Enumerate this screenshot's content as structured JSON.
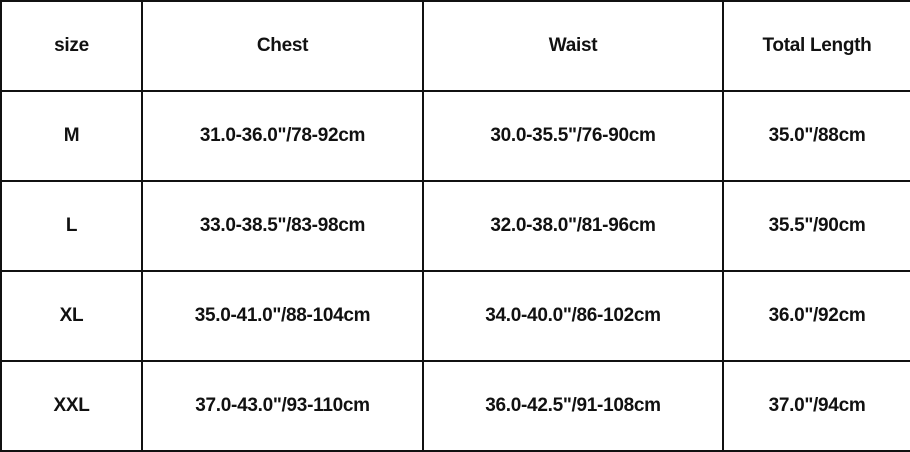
{
  "headers": [
    "size",
    "Chest",
    "Waist",
    "Total Length"
  ],
  "rows": [
    [
      "M",
      "31.0-36.0\"/78-92cm",
      "30.0-35.5\"/76-90cm",
      "35.0\"/88cm"
    ],
    [
      "L",
      "33.0-38.5\"/83-98cm",
      "32.0-38.0\"/81-96cm",
      "35.5\"/90cm"
    ],
    [
      "XL",
      "35.0-41.0\"/88-104cm",
      "34.0-40.0\"/86-102cm",
      "36.0\"/92cm"
    ],
    [
      "XXL",
      "37.0-43.0\"/93-110cm",
      "36.0-42.5\"/91-108cm",
      "37.0\"/94cm"
    ]
  ]
}
